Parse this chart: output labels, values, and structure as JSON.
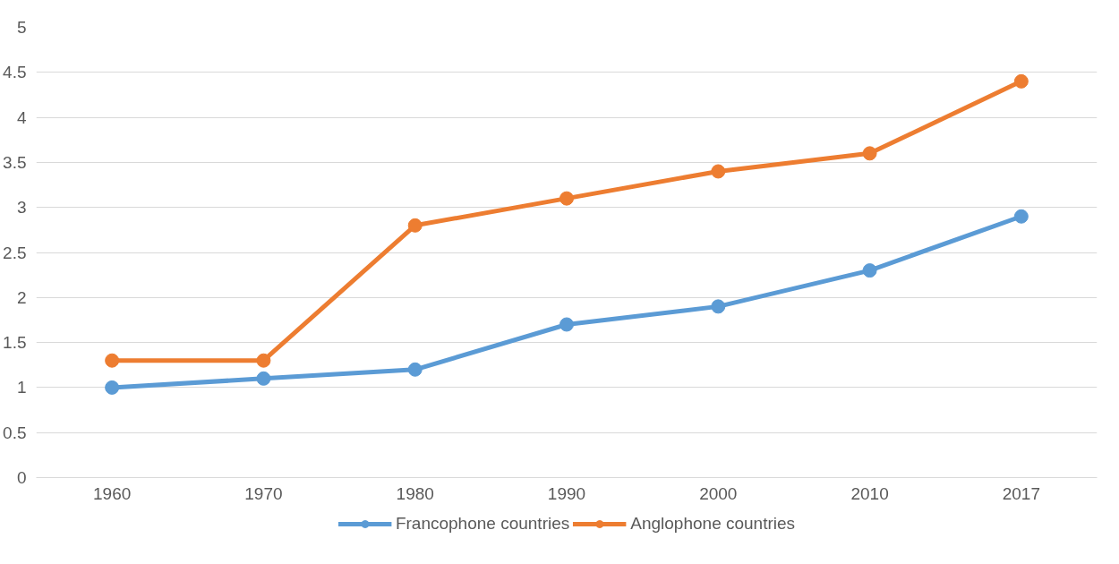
{
  "chart_data": {
    "type": "line",
    "categories": [
      "1960",
      "1970",
      "1980",
      "1990",
      "2000",
      "2010",
      "2017"
    ],
    "series": [
      {
        "name": "Francophone countries",
        "color": "#5b9bd5",
        "values": [
          1,
          1.1,
          1.2,
          1.7,
          1.9,
          2.3,
          2.9
        ]
      },
      {
        "name": "Anglophone countries",
        "color": "#ed7d31",
        "values": [
          1.3,
          1.3,
          2.8,
          3.1,
          3.4,
          3.6,
          4.4
        ]
      }
    ],
    "ylim": [
      0,
      5
    ],
    "yticks": [
      0,
      0.5,
      1,
      1.5,
      2,
      2.5,
      3,
      3.5,
      4,
      4.5,
      5
    ],
    "grid": "y",
    "legend": "bottom",
    "marker": "circle",
    "line_style": "solid"
  }
}
